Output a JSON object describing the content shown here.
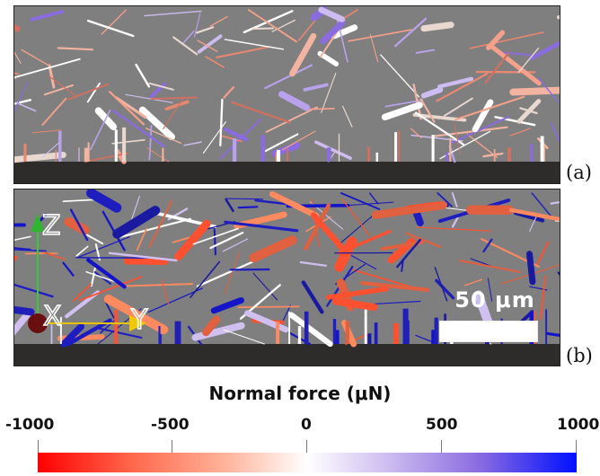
{
  "panels": {
    "a": {
      "label": "(a)"
    },
    "b": {
      "label": "(b)",
      "scale_bar": "50 μm",
      "axes": {
        "z": "Z",
        "x": "X",
        "y": "Y"
      }
    }
  },
  "colorbar": {
    "title": "Normal force (μN)",
    "ticks": [
      "-1000",
      "-500",
      "0",
      "500",
      "1000"
    ],
    "colors": {
      "negative": "#ff0000",
      "zero": "#ffffff",
      "positive": "#0010ff"
    }
  }
}
